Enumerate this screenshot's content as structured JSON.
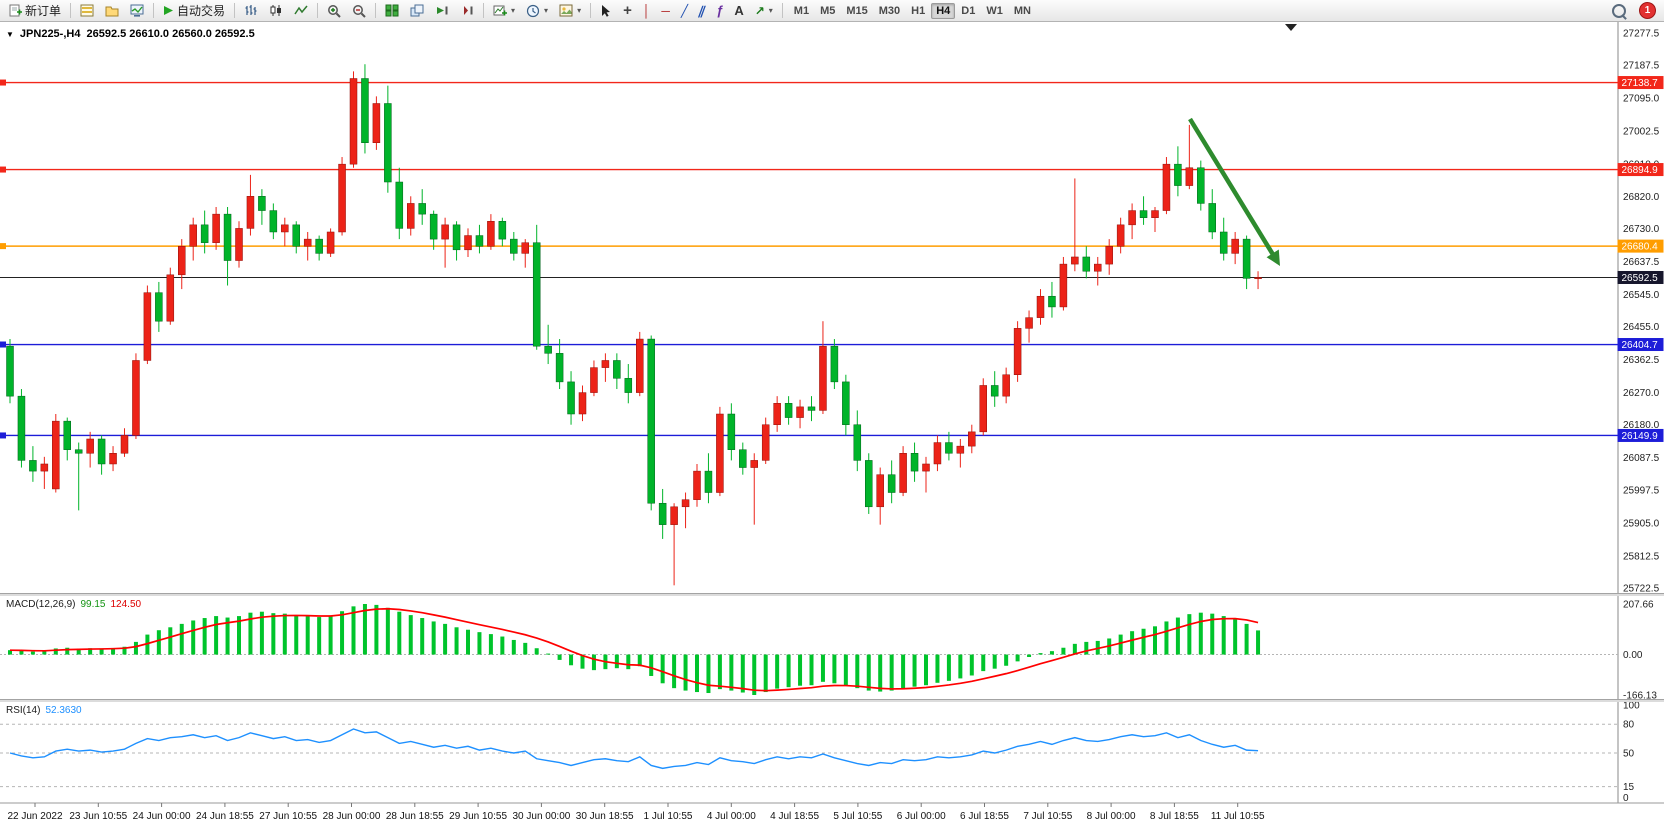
{
  "toolbar": {
    "new_order": "新订单",
    "autotrading": "自动交易",
    "timeframes": [
      "M1",
      "M5",
      "M15",
      "M30",
      "H1",
      "H4",
      "D1",
      "W1",
      "MN"
    ],
    "active_timeframe": "H4",
    "notification_count": "1"
  },
  "icons": {
    "symbol_marker": "▼",
    "dropdown_caret": "▾",
    "crosshair": "+",
    "vertical_line": "│",
    "horizontal_line": "─",
    "trend_line": "╱",
    "channel": "∥",
    "fibonacci": "ƒ",
    "text_tool": "A",
    "arrow_tool": "↗"
  },
  "chart_data": {
    "type": "candlestick",
    "symbol_period": "JPN225-,H4",
    "ohlc_text": "26592.5 26610.0 26560.0 26592.5",
    "colors": {
      "up": "#ec2318",
      "down": "#00b42a",
      "up_border": "#8e0f08",
      "down_border": "#00601a",
      "macd_hist": "#00c42b",
      "macd_signal": "#ff0000",
      "rsi_line": "#1e90ff",
      "arrow": "#2e8b2e",
      "current_price_tag": "#16162c"
    },
    "price_axis": [
      "27277.5",
      "27187.5",
      "27095.0",
      "27002.5",
      "26910.0",
      "26820.0",
      "26730.0",
      "26637.5",
      "26545.0",
      "26455.0",
      "26362.5",
      "26270.0",
      "26180.0",
      "26087.5",
      "25997.5",
      "25905.0",
      "25812.5",
      "25722.5"
    ],
    "hlines": [
      {
        "label": "27138.7",
        "value": 27138.7,
        "color": "#f2271a"
      },
      {
        "label": "26894.9",
        "value": 26894.9,
        "color": "#f2271a"
      },
      {
        "label": "26680.4",
        "value": 26680.4,
        "color": "#ff9d00"
      },
      {
        "label": "26404.7",
        "value": 26404.7,
        "color": "#1d1dd8"
      },
      {
        "label": "26149.9",
        "value": 26149.9,
        "color": "#1d1dd8"
      }
    ],
    "current_price": {
      "label": "26592.5",
      "value": 26592.5
    },
    "time_axis": [
      "22 Jun 2022",
      "23 Jun 10:55",
      "24 Jun 00:00",
      "24 Jun 18:55",
      "27 Jun 10:55",
      "28 Jun 00:00",
      "28 Jun 18:55",
      "29 Jun 10:55",
      "30 Jun 00:00",
      "30 Jun 18:55",
      "1 Jul 10:55",
      "4 Jul 00:00",
      "4 Jul 18:55",
      "5 Jul 10:55",
      "6 Jul 00:00",
      "6 Jul 18:55",
      "7 Jul 10:55",
      "8 Jul 00:00",
      "8 Jul 18:55",
      "11 Jul 10:55"
    ],
    "candles": [
      [
        26400,
        26420,
        26240,
        26260
      ],
      [
        26260,
        26280,
        26060,
        26080
      ],
      [
        26080,
        26120,
        26020,
        26050
      ],
      [
        26050,
        26090,
        26000,
        26070
      ],
      [
        26000,
        26210,
        25990,
        26190
      ],
      [
        26190,
        26200,
        26080,
        26110
      ],
      [
        26110,
        26130,
        25940,
        26100
      ],
      [
        26100,
        26160,
        26060,
        26140
      ],
      [
        26140,
        26150,
        26040,
        26070
      ],
      [
        26070,
        26120,
        26050,
        26100
      ],
      [
        26100,
        26170,
        26090,
        26150
      ],
      [
        26150,
        26380,
        26140,
        26360
      ],
      [
        26360,
        26570,
        26350,
        26550
      ],
      [
        26550,
        26580,
        26440,
        26470
      ],
      [
        26470,
        26620,
        26460,
        26600
      ],
      [
        26600,
        26700,
        26560,
        26680
      ],
      [
        26680,
        26760,
        26640,
        26740
      ],
      [
        26740,
        26780,
        26660,
        26690
      ],
      [
        26690,
        26790,
        26670,
        26770
      ],
      [
        26770,
        26790,
        26570,
        26640
      ],
      [
        26640,
        26750,
        26620,
        26730
      ],
      [
        26730,
        26880,
        26710,
        26820
      ],
      [
        26820,
        26840,
        26740,
        26780
      ],
      [
        26780,
        26800,
        26700,
        26720
      ],
      [
        26720,
        26760,
        26680,
        26740
      ],
      [
        26740,
        26750,
        26660,
        26680
      ],
      [
        26680,
        26720,
        26640,
        26700
      ],
      [
        26700,
        26710,
        26640,
        26660
      ],
      [
        26660,
        26730,
        26650,
        26720
      ],
      [
        26720,
        26930,
        26710,
        26910
      ],
      [
        26910,
        27170,
        26900,
        27150
      ],
      [
        27150,
        27190,
        26940,
        26970
      ],
      [
        26970,
        27100,
        26950,
        27080
      ],
      [
        27080,
        27130,
        26830,
        26860
      ],
      [
        26860,
        26900,
        26700,
        26730
      ],
      [
        26730,
        26820,
        26710,
        26800
      ],
      [
        26800,
        26840,
        26740,
        26770
      ],
      [
        26770,
        26780,
        26670,
        26700
      ],
      [
        26700,
        26760,
        26620,
        26740
      ],
      [
        26740,
        26750,
        26640,
        26670
      ],
      [
        26670,
        26730,
        26650,
        26710
      ],
      [
        26710,
        26740,
        26660,
        26680
      ],
      [
        26680,
        26770,
        26670,
        26750
      ],
      [
        26750,
        26760,
        26680,
        26700
      ],
      [
        26700,
        26720,
        26640,
        26660
      ],
      [
        26660,
        26700,
        26620,
        26690
      ],
      [
        26690,
        26740,
        26390,
        26400
      ],
      [
        26400,
        26460,
        26350,
        26380
      ],
      [
        26380,
        26420,
        26280,
        26300
      ],
      [
        26300,
        26330,
        26180,
        26210
      ],
      [
        26210,
        26290,
        26190,
        26270
      ],
      [
        26270,
        26360,
        26260,
        26340
      ],
      [
        26340,
        26380,
        26300,
        26360
      ],
      [
        26360,
        26380,
        26280,
        26310
      ],
      [
        26310,
        26350,
        26240,
        26270
      ],
      [
        26270,
        26440,
        26260,
        26420
      ],
      [
        26420,
        26430,
        25940,
        25960
      ],
      [
        25960,
        26000,
        25860,
        25900
      ],
      [
        25900,
        25960,
        25730,
        25950
      ],
      [
        25950,
        25990,
        25890,
        25970
      ],
      [
        25970,
        26070,
        25950,
        26050
      ],
      [
        26050,
        26100,
        25960,
        25990
      ],
      [
        25990,
        26230,
        25980,
        26210
      ],
      [
        26210,
        26240,
        26080,
        26110
      ],
      [
        26110,
        26130,
        26040,
        26060
      ],
      [
        26060,
        26100,
        25900,
        26080
      ],
      [
        26080,
        26200,
        26070,
        26180
      ],
      [
        26180,
        26260,
        26160,
        26240
      ],
      [
        26240,
        26260,
        26180,
        26200
      ],
      [
        26200,
        26250,
        26170,
        26230
      ],
      [
        26230,
        26260,
        26190,
        26220
      ],
      [
        26220,
        26470,
        26210,
        26400
      ],
      [
        26400,
        26420,
        26280,
        26300
      ],
      [
        26300,
        26320,
        26150,
        26180
      ],
      [
        26180,
        26220,
        26050,
        26080
      ],
      [
        26080,
        26100,
        25930,
        25950
      ],
      [
        25950,
        26060,
        25900,
        26040
      ],
      [
        26040,
        26080,
        25960,
        25990
      ],
      [
        25990,
        26120,
        25980,
        26100
      ],
      [
        26100,
        26130,
        26020,
        26050
      ],
      [
        26050,
        26090,
        25990,
        26070
      ],
      [
        26070,
        26150,
        26050,
        26130
      ],
      [
        26130,
        26160,
        26080,
        26100
      ],
      [
        26100,
        26140,
        26060,
        26120
      ],
      [
        26120,
        26180,
        26100,
        26160
      ],
      [
        26160,
        26310,
        26150,
        26290
      ],
      [
        26290,
        26330,
        26230,
        26260
      ],
      [
        26260,
        26340,
        26240,
        26320
      ],
      [
        26320,
        26470,
        26300,
        26450
      ],
      [
        26450,
        26500,
        26410,
        26480
      ],
      [
        26480,
        26560,
        26460,
        26540
      ],
      [
        26540,
        26580,
        26480,
        26510
      ],
      [
        26510,
        26650,
        26500,
        26630
      ],
      [
        26630,
        26870,
        26610,
        26650
      ],
      [
        26650,
        26680,
        26590,
        26610
      ],
      [
        26610,
        26650,
        26570,
        26630
      ],
      [
        26630,
        26700,
        26600,
        26680
      ],
      [
        26680,
        26760,
        26660,
        26740
      ],
      [
        26740,
        26800,
        26700,
        26780
      ],
      [
        26780,
        26820,
        26740,
        26760
      ],
      [
        26760,
        26790,
        26720,
        26780
      ],
      [
        26780,
        26930,
        26770,
        26910
      ],
      [
        26910,
        26960,
        26820,
        26850
      ],
      [
        26850,
        27020,
        26840,
        26900
      ],
      [
        26900,
        26920,
        26780,
        26800
      ],
      [
        26800,
        26840,
        26700,
        26720
      ],
      [
        26720,
        26760,
        26640,
        26660
      ],
      [
        26660,
        26720,
        26630,
        26700
      ],
      [
        26700,
        26710,
        26560,
        26590
      ],
      [
        26592.5,
        26610,
        26560,
        26592.5
      ]
    ],
    "macd": {
      "name": "MACD(12,26,9)",
      "value": "99.15",
      "signal_value": "124.50",
      "axis_labels": [
        "207.66",
        "0.00",
        "-166.13"
      ],
      "max": 207.66,
      "min": -166.13,
      "values": [
        18,
        15,
        12,
        14,
        25,
        28,
        24,
        26,
        25,
        27,
        32,
        52,
        82,
        100,
        112,
        126,
        140,
        150,
        158,
        152,
        158,
        172,
        176,
        170,
        168,
        162,
        158,
        154,
        158,
        178,
        198,
        207.66,
        204,
        192,
        176,
        162,
        150,
        136,
        126,
        112,
        102,
        92,
        84,
        74,
        60,
        48,
        26,
        4,
        -22,
        -44,
        -58,
        -64,
        -60,
        -56,
        -60,
        -48,
        -88,
        -118,
        -138,
        -148,
        -154,
        -158,
        -142,
        -148,
        -156,
        -166.13,
        -154,
        -140,
        -134,
        -128,
        -126,
        -112,
        -118,
        -128,
        -138,
        -148,
        -152,
        -148,
        -138,
        -132,
        -126,
        -116,
        -108,
        -98,
        -86,
        -68,
        -58,
        -46,
        -28,
        -10,
        6,
        14,
        28,
        44,
        52,
        56,
        66,
        82,
        96,
        106,
        116,
        136,
        152,
        166,
        172,
        168,
        158,
        148,
        126,
        99.15
      ]
    },
    "rsi": {
      "name": "RSI(14)",
      "value": "52.3630",
      "axis_labels": [
        "100",
        "80",
        "50",
        "15",
        "0"
      ],
      "levels": [
        80,
        50,
        15
      ],
      "values": [
        50,
        47,
        45,
        46,
        52,
        54,
        52,
        53,
        51,
        52,
        54,
        60,
        65,
        63,
        66,
        67,
        69,
        66,
        68,
        63,
        66,
        71,
        68,
        65,
        67,
        63,
        64,
        61,
        63,
        69,
        75,
        71,
        72,
        66,
        60,
        62,
        59,
        56,
        58,
        55,
        57,
        53,
        55,
        52,
        50,
        52,
        44,
        42,
        40,
        37,
        40,
        43,
        44,
        42,
        41,
        46,
        37,
        34,
        36,
        37,
        40,
        38,
        45,
        42,
        41,
        39,
        43,
        46,
        44,
        46,
        45,
        49,
        45,
        42,
        39,
        37,
        40,
        39,
        43,
        42,
        43,
        46,
        45,
        46,
        48,
        52,
        50,
        53,
        57,
        59,
        62,
        59,
        63,
        66,
        63,
        62,
        64,
        67,
        69,
        67,
        68,
        71,
        66,
        69,
        63,
        59,
        56,
        58,
        53,
        52.36
      ]
    }
  }
}
